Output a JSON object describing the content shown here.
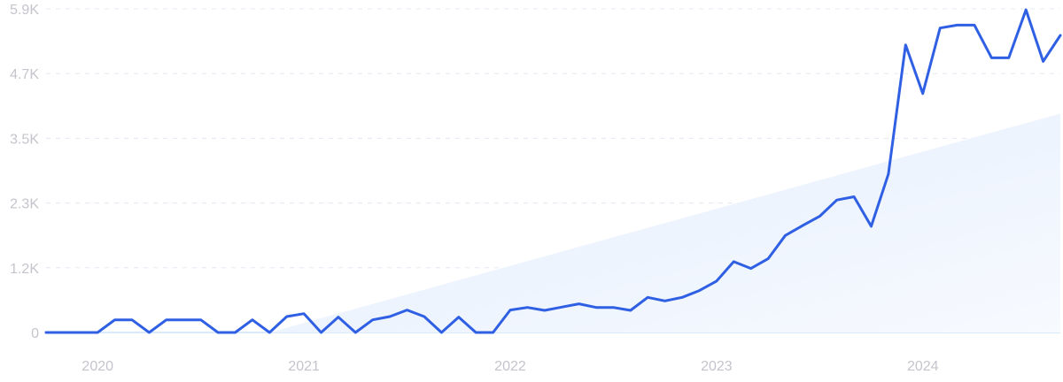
{
  "chart_data": {
    "type": "line",
    "title": "",
    "xlabel": "",
    "ylabel": "",
    "x_start": "2019-10",
    "x_end": "2024-09",
    "x_interval": "month",
    "x_tick_labels": [
      "2020",
      "2021",
      "2022",
      "2023",
      "2024"
    ],
    "y_tick_labels": [
      "0",
      "1.2K",
      "2.3K",
      "3.5K",
      "4.7K",
      "5.9K"
    ],
    "y_ticks": [
      0,
      1180,
      2360,
      3540,
      4720,
      5900
    ],
    "ylim": [
      0,
      5900
    ],
    "grid": true,
    "values": [
      0,
      0,
      0,
      0,
      231,
      231,
      0,
      231,
      231,
      231,
      0,
      0,
      231,
      0,
      290,
      344,
      0,
      280,
      0,
      231,
      290,
      409,
      290,
      0,
      280,
      0,
      0,
      409,
      457,
      403,
      462,
      522,
      457,
      457,
      403,
      640,
      575,
      640,
      764,
      936,
      1291,
      1167,
      1345,
      1769,
      1947,
      2119,
      2415,
      2474,
      1936,
      2888,
      5243,
      4356,
      5550,
      5604,
      5604,
      5007,
      5007,
      5883,
      4942,
      5416
    ],
    "trend": {
      "start": "2020-11",
      "start_value": 0,
      "end": "2024-09",
      "end_value": 3990
    },
    "colors": {
      "line": "#2f5fe3",
      "trend_fill": "#e6effc",
      "grid": "#e3e8f2",
      "baseline": "#cfe3fa",
      "tick_text": "#c4c4cc"
    }
  }
}
